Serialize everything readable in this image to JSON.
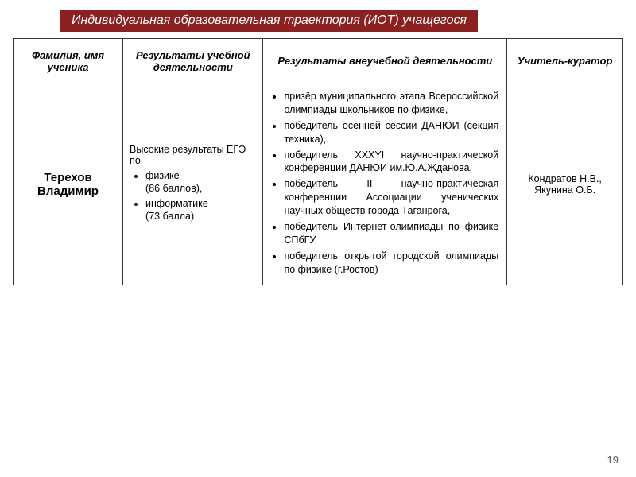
{
  "title": "Индивидуальная образовательная траектория (ИОТ) учащегося",
  "colors": {
    "title_bg": "#8b2020",
    "title_fg": "#ffffff",
    "border": "#333333",
    "text": "#000000",
    "page_num": "#555555",
    "page_bg": "#ffffff"
  },
  "fontsize": {
    "title": 16,
    "header": 13,
    "body": 12.5,
    "student": 15,
    "pagenum": 13
  },
  "columns": [
    {
      "label": "Фамилия, имя ученика",
      "width": "18%"
    },
    {
      "label": "Результаты учебной деятельности",
      "width": "23%"
    },
    {
      "label": "Результаты внеучебной деятельности",
      "width": "40%"
    },
    {
      "label": "Учитель-куратор",
      "width": "19%"
    }
  ],
  "student": {
    "surname": "Терехов",
    "name": "Владимир"
  },
  "academic": {
    "intro": "Высокие результаты ЕГЭ по",
    "items": [
      {
        "subject": "физике",
        "score": "(86 баллов),"
      },
      {
        "subject": "информатике",
        "score": "(73 балла)"
      }
    ]
  },
  "extracurricular": [
    "призёр муниципального этапа Всероссийской олимпиады школьников по физике,",
    "победитель осенней сессии ДАНЮИ (секция техника),",
    "победитель ХХХYI научно-практической конференции ДАНЮИ им.Ю.А.Жданова,",
    "победитель II научно-практическая конференции Ассоциации ученических научных обществ города Таганрога,",
    "победитель Интернет-олимпиады по физике СПбГУ,",
    "победитель открытой городской олимпиады по физике (г.Ростов)"
  ],
  "curators": [
    "Кондратов Н.В.,",
    "Якунина О.Б."
  ],
  "page_number": "19"
}
